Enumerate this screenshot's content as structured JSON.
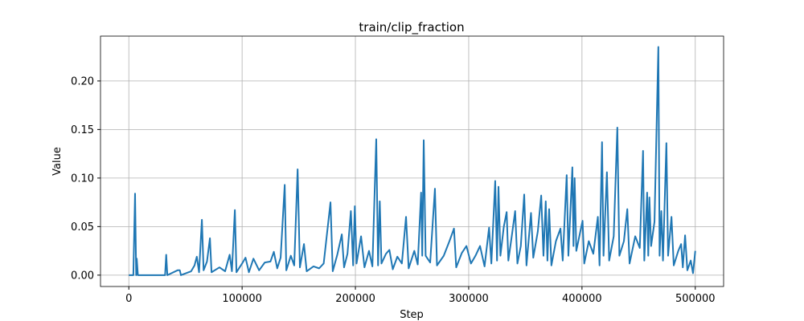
{
  "chart_data": {
    "type": "line",
    "title": "train/clip_fraction",
    "x_label": "Step",
    "y_label": "Value",
    "x": [
      0,
      4000,
      5500,
      6500,
      7000,
      8000,
      32000,
      33000,
      34000,
      43000,
      45000,
      46000,
      55000,
      58000,
      60000,
      62000,
      64500,
      66000,
      69000,
      71600,
      73000,
      80000,
      85000,
      89000,
      91000,
      93600,
      95000,
      100000,
      103000,
      106000,
      110000,
      115000,
      120000,
      125000,
      128000,
      131000,
      134000,
      137600,
      139000,
      143000,
      146000,
      149000,
      151000,
      154600,
      157000,
      163000,
      168000,
      172000,
      178000,
      180000,
      184000,
      188000,
      190000,
      193000,
      196000,
      198000,
      199500,
      201000,
      205000,
      208000,
      212000,
      215000,
      218400,
      220000,
      221500,
      223000,
      227000,
      230000,
      233000,
      237000,
      241000,
      244700,
      247000,
      252000,
      255000,
      258000,
      259000,
      260300,
      262000,
      266000,
      270200,
      272000,
      278000,
      283000,
      287000,
      289000,
      294000,
      298000,
      302000,
      306000,
      310000,
      314000,
      318000,
      320000,
      323400,
      325000,
      326300,
      328000,
      331000,
      333500,
      335000,
      338000,
      341000,
      343000,
      346000,
      349000,
      351000,
      355000,
      357000,
      361000,
      364000,
      366000,
      368000,
      369500,
      371000,
      373000,
      377000,
      381000,
      383000,
      386500,
      388000,
      391500,
      392500,
      393500,
      395000,
      398000,
      400500,
      402000,
      406000,
      410000,
      414000,
      415500,
      417700,
      419000,
      422000,
      424000,
      428000,
      431200,
      433000,
      437000,
      440000,
      442000,
      447000,
      451000,
      453900,
      455000,
      457500,
      458500,
      459500,
      461000,
      464000,
      467400,
      468500,
      470000,
      471500,
      474500,
      476000,
      479000,
      481000,
      485000,
      487500,
      489000,
      491000,
      493000,
      496000,
      498000,
      500000
    ],
    "series": [
      {
        "color": "#1f77b4",
        "values": [
          0,
          0,
          0.084,
          0,
          0.017,
          0,
          0,
          0.021,
          0,
          0.005,
          0.005,
          0,
          0.004,
          0.01,
          0.019,
          0.003,
          0.057,
          0.005,
          0.014,
          0.038,
          0.003,
          0.008,
          0.004,
          0.021,
          0.004,
          0.067,
          0.003,
          0.012,
          0.018,
          0.003,
          0.017,
          0.005,
          0.013,
          0.014,
          0.024,
          0.007,
          0.018,
          0.093,
          0.005,
          0.02,
          0.01,
          0.109,
          0.008,
          0.032,
          0.004,
          0.009,
          0.007,
          0.012,
          0.075,
          0.004,
          0.021,
          0.042,
          0.008,
          0.022,
          0.066,
          0.01,
          0.071,
          0.012,
          0.04,
          0.008,
          0.025,
          0.009,
          0.14,
          0.01,
          0.076,
          0.012,
          0.022,
          0.026,
          0.006,
          0.019,
          0.012,
          0.06,
          0.007,
          0.025,
          0.011,
          0.085,
          0.02,
          0.139,
          0.02,
          0.013,
          0.089,
          0.01,
          0.02,
          0.035,
          0.048,
          0.008,
          0.023,
          0.03,
          0.012,
          0.02,
          0.03,
          0.009,
          0.049,
          0.012,
          0.097,
          0.015,
          0.091,
          0.02,
          0.05,
          0.065,
          0.015,
          0.04,
          0.066,
          0.012,
          0.03,
          0.083,
          0.01,
          0.064,
          0.018,
          0.045,
          0.082,
          0.02,
          0.076,
          0.015,
          0.068,
          0.01,
          0.035,
          0.048,
          0.015,
          0.103,
          0.02,
          0.111,
          0.03,
          0.1,
          0.025,
          0.042,
          0.056,
          0.012,
          0.035,
          0.022,
          0.06,
          0.01,
          0.137,
          0.02,
          0.106,
          0.015,
          0.04,
          0.152,
          0.02,
          0.035,
          0.068,
          0.012,
          0.04,
          0.028,
          0.128,
          0.015,
          0.085,
          0.02,
          0.08,
          0.03,
          0.055,
          0.235,
          0.02,
          0.066,
          0.015,
          0.136,
          0.02,
          0.06,
          0.01,
          0.025,
          0.032,
          0.008,
          0.041,
          0.005,
          0.015,
          0.002,
          0.025
        ]
      }
    ],
    "xlim": [
      -25000,
      525000
    ],
    "ylim": [
      -0.0117,
      0.2462
    ],
    "xticks": [
      0,
      100000,
      200000,
      300000,
      400000,
      500000
    ],
    "yticks": [
      {
        "value": 0,
        "label": "0.00"
      },
      {
        "value": 0.05,
        "label": "0.05"
      },
      {
        "value": 0.1,
        "label": "0.10"
      },
      {
        "value": 0.15,
        "label": "0.15"
      },
      {
        "value": 0.2,
        "label": "0.20"
      }
    ],
    "grid": true
  }
}
